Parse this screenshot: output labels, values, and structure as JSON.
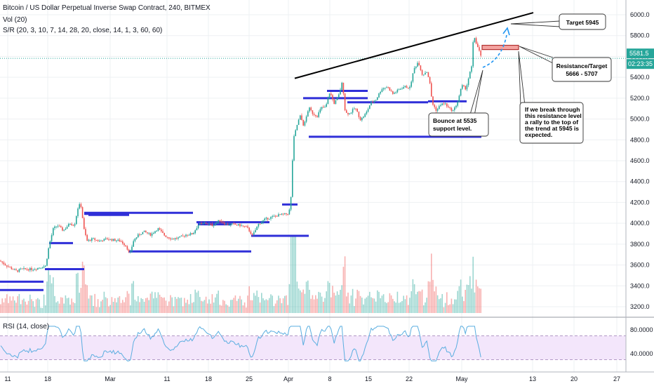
{
  "header": {
    "title": "Bitcoin / US Dollar Perpetual Inverse Swap Contract, 240, BITMEX",
    "vol_label": "Vol (20)",
    "sr_label": "S/R (20, 3, 10, 7, 14, 28, 20, close, 14, 1, 3, 60, 60)"
  },
  "price_axis": {
    "ticks": [
      "6000.0",
      "5800.0",
      "5600.0",
      "5400.0",
      "5200.0",
      "5000.0",
      "4800.0",
      "4600.0",
      "4400.0",
      "4200.0",
      "4000.0",
      "3800.0",
      "3600.0",
      "3400.0",
      "3200.0"
    ],
    "last_price": "5581.5",
    "countdown": "02:23:35"
  },
  "rsi_axis": {
    "label": "RSI (14, close)",
    "ticks": [
      "80.0000",
      "40.0000"
    ]
  },
  "time_axis": {
    "ticks": [
      "11",
      "18",
      "Mar",
      "11",
      "18",
      "25",
      "Apr",
      "8",
      "15",
      "22",
      "May",
      "13",
      "20",
      "27"
    ]
  },
  "annotations": {
    "target_box": "Target 5945",
    "resistance_box_line1": "Resistance/Target",
    "resistance_box_line2": "5666 - 5707",
    "bounce_line1": "Bounce at 5535",
    "bounce_line2": "support level.",
    "break_lines": [
      "If we break through",
      "this resistance level",
      "a rally to the top of",
      "the trend at 5945 is",
      "expected."
    ]
  },
  "colors": {
    "up": "#26a69a",
    "down": "#ef5350",
    "support": "#2f2fd8",
    "trendline": "#000000",
    "rsi_line": "#5aaee0",
    "rsi_band": "#f3e6fb",
    "resistance_fill": "#f4a3a0",
    "arrow": "#2196f3"
  },
  "chart_data": {
    "type": "candlestick",
    "symbol": "XBTUSD",
    "timeframe": "240",
    "exchange": "BITMEX",
    "price_range": [
      3160,
      6080
    ],
    "rsi_range": [
      30,
      90
    ],
    "price_path": [
      [
        0,
        3640
      ],
      [
        8,
        3600
      ],
      [
        18,
        3560
      ],
      [
        24,
        3540
      ],
      [
        30,
        3560
      ],
      [
        38,
        3560
      ],
      [
        48,
        3560
      ],
      [
        58,
        3580
      ],
      [
        65,
        3590
      ],
      [
        70,
        3790
      ],
      [
        76,
        3950
      ],
      [
        82,
        3980
      ],
      [
        90,
        3930
      ],
      [
        100,
        4000
      ],
      [
        106,
        3980
      ],
      [
        112,
        4180
      ],
      [
        116,
        4160
      ],
      [
        119,
        3960
      ],
      [
        124,
        3830
      ],
      [
        132,
        3850
      ],
      [
        142,
        3830
      ],
      [
        152,
        3850
      ],
      [
        162,
        3840
      ],
      [
        172,
        3830
      ],
      [
        180,
        3780
      ],
      [
        185,
        3700
      ],
      [
        190,
        3830
      ],
      [
        196,
        3880
      ],
      [
        205,
        3920
      ],
      [
        215,
        3890
      ],
      [
        225,
        3950
      ],
      [
        235,
        3880
      ],
      [
        245,
        3850
      ],
      [
        255,
        3860
      ],
      [
        265,
        3890
      ],
      [
        275,
        3900
      ],
      [
        283,
        3990
      ],
      [
        293,
        4000
      ],
      [
        303,
        3980
      ],
      [
        313,
        4030
      ],
      [
        322,
        3990
      ],
      [
        332,
        3990
      ],
      [
        342,
        3980
      ],
      [
        352,
        3960
      ],
      [
        360,
        3880
      ],
      [
        368,
        3990
      ],
      [
        378,
        4040
      ],
      [
        388,
        4060
      ],
      [
        398,
        4080
      ],
      [
        410,
        4090
      ],
      [
        414,
        4150
      ],
      [
        418,
        4800
      ],
      [
        424,
        4960
      ],
      [
        428,
        5030
      ],
      [
        433,
        4930
      ],
      [
        440,
        5110
      ],
      [
        446,
        5050
      ],
      [
        452,
        5030
      ],
      [
        458,
        5110
      ],
      [
        464,
        5110
      ],
      [
        470,
        5260
      ],
      [
        476,
        5150
      ],
      [
        482,
        5210
      ],
      [
        488,
        5360
      ],
      [
        492,
        5060
      ],
      [
        498,
        5050
      ],
      [
        506,
        5110
      ],
      [
        514,
        4990
      ],
      [
        522,
        5060
      ],
      [
        528,
        5150
      ],
      [
        536,
        5190
      ],
      [
        544,
        5290
      ],
      [
        552,
        5310
      ],
      [
        560,
        5240
      ],
      [
        568,
        5280
      ],
      [
        576,
        5310
      ],
      [
        584,
        5300
      ],
      [
        590,
        5480
      ],
      [
        596,
        5550
      ],
      [
        602,
        5420
      ],
      [
        608,
        5460
      ],
      [
        612,
        5370
      ],
      [
        616,
        5150
      ],
      [
        622,
        5080
      ],
      [
        628,
        5140
      ],
      [
        634,
        5150
      ],
      [
        640,
        5100
      ],
      [
        646,
        5080
      ],
      [
        652,
        5160
      ],
      [
        658,
        5320
      ],
      [
        664,
        5290
      ],
      [
        668,
        5400
      ],
      [
        672,
        5500
      ],
      [
        675,
        5810
      ],
      [
        679,
        5720
      ],
      [
        683,
        5650
      ],
      [
        686,
        5580
      ]
    ],
    "support_resistance_levels": [
      {
        "price": 3440
      },
      {
        "price": 3360
      },
      {
        "price": 3560
      },
      {
        "price": 3810
      },
      {
        "price": 4090
      },
      {
        "price": 4080
      },
      {
        "price": 4100
      },
      {
        "price": 3730
      },
      {
        "price": 4010
      },
      {
        "price": 3990
      },
      {
        "price": 3880
      },
      {
        "price": 4180
      },
      {
        "price": 5200
      },
      {
        "price": 5270
      },
      {
        "price": 5160
      },
      {
        "price": 5170
      },
      {
        "price": 4830
      }
    ],
    "trendline": {
      "from_price": 5390,
      "to_price": 6020
    },
    "resistance_zone": [
      5666,
      5707
    ],
    "target": 5945,
    "support_bounce": 5535,
    "last_price": 5581.5,
    "rsi_levels": [
      70,
      30
    ],
    "rsi_ticks": [
      80,
      40
    ]
  }
}
